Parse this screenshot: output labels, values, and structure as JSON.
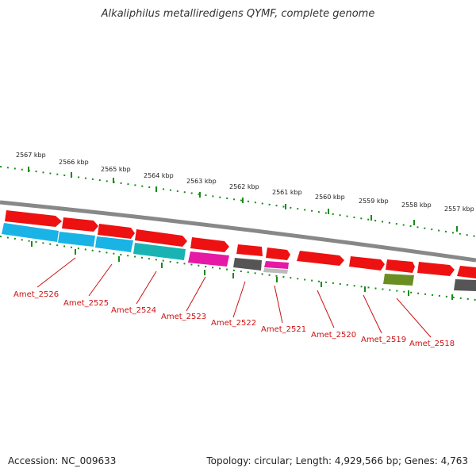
{
  "title": "Alkaliphilus metalliredigens QYMF, complete genome",
  "footer": {
    "accession": "Accession: NC_009633",
    "summary": "Topology: circular; Length: 4,929,566 bp; Genes: 4,763"
  },
  "colors": {
    "backbone": "#888888",
    "ticks": "#1a8a1a",
    "label": "#cc1111",
    "forward_gene": "#ee1111",
    "cds_cyan": "#19b3e6",
    "cds_teal": "#1ab3b3",
    "cds_magenta": "#e619a6",
    "cds_grey": "#555555",
    "cds_olive": "#6b8e23"
  },
  "scale_labels": [
    "2567 kbp",
    "2566 kbp",
    "2565 kbp",
    "2564 kbp",
    "2563 kbp",
    "2562 kbp",
    "2561 kbp",
    "2560 kbp",
    "2559 kbp",
    "2558 kbp",
    "2557 kbp"
  ],
  "gene_labels": [
    "Amet_2526",
    "Amet_2525",
    "Amet_2524",
    "Amet_2523",
    "Amet_2522",
    "Amet_2521",
    "Amet_2520",
    "Amet_2519",
    "Amet_2518"
  ]
}
